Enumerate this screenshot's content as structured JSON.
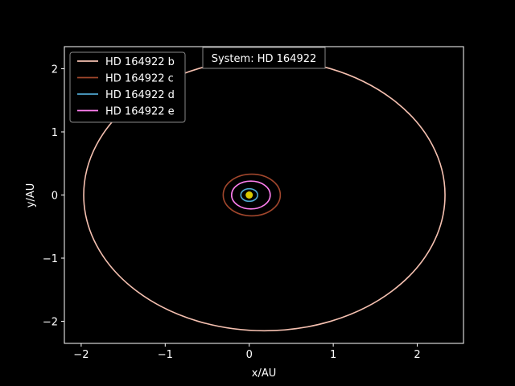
{
  "chart_data": {
    "type": "line",
    "title": "System: HD 164922",
    "xlabel": "x/AU",
    "ylabel": "y/AU",
    "xlim": [
      -2.2,
      2.55
    ],
    "ylim": [
      -2.35,
      2.35
    ],
    "xticks": [
      -2,
      -1,
      0,
      1,
      2
    ],
    "yticks": [
      -2,
      -1,
      0,
      1,
      2
    ],
    "xtick_labels": [
      "−2",
      "−1",
      "0",
      "1",
      "2"
    ],
    "ytick_labels": [
      "−2",
      "−1",
      "0",
      "1",
      "2"
    ],
    "grid": false,
    "legend_position": "top-left",
    "background": "#000000",
    "star": {
      "x": 0,
      "y": 0,
      "color": "#d9c800"
    },
    "series": [
      {
        "name": "HD 164922 b",
        "color": "#f5c0b0",
        "orbit": {
          "cx": 0.18,
          "cy": 0.0,
          "a": 2.15,
          "b": 2.15
        }
      },
      {
        "name": "HD 164922 c",
        "color": "#a0462c",
        "orbit": {
          "cx": 0.03,
          "cy": 0.0,
          "a": 0.34,
          "b": 0.33
        }
      },
      {
        "name": "HD 164922 d",
        "color": "#4fa6cf",
        "orbit": {
          "cx": 0.0,
          "cy": 0.0,
          "a": 0.1,
          "b": 0.1
        }
      },
      {
        "name": "HD 164922 e",
        "color": "#ff7ff0",
        "orbit": {
          "cx": 0.02,
          "cy": 0.0,
          "a": 0.23,
          "b": 0.22
        }
      }
    ]
  }
}
